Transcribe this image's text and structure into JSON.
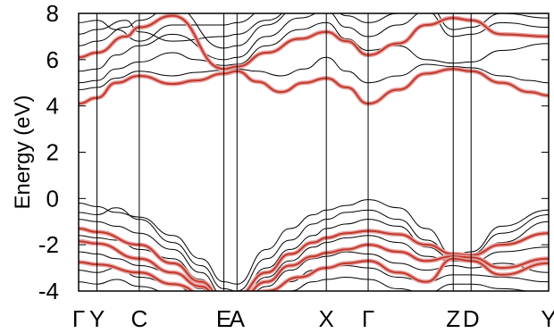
{
  "chart_data": {
    "type": "line",
    "title": "",
    "xlabel": "",
    "ylabel": "Energy (eV)",
    "ylim": [
      -4,
      8
    ],
    "y_ticks": [
      -4,
      -2,
      0,
      2,
      4,
      6,
      8
    ],
    "y_tick_labels": [
      "-4",
      "-2",
      "0",
      "2",
      "4",
      "6",
      "8"
    ],
    "k_path": [
      {
        "label": "Γ",
        "x": 0.0
      },
      {
        "label": "Y",
        "x": 0.039
      },
      {
        "label": "C",
        "x": 0.129
      },
      {
        "label": "E",
        "x": 0.309
      },
      {
        "label": "A",
        "x": 0.337
      },
      {
        "label": "X",
        "x": 0.527
      },
      {
        "label": "Γ",
        "x": 0.616
      },
      {
        "label": "Z",
        "x": 0.797
      },
      {
        "label": "D",
        "x": 0.835
      },
      {
        "label": "Y",
        "x": 1.0
      }
    ],
    "xlim": [
      0,
      1
    ],
    "grid": false,
    "legend": "none",
    "colors": {
      "bands": "#000000",
      "projection": "#c0392b",
      "projection_glow": "#e8a3a3"
    },
    "series": [
      {
        "name": "",
        "role": "projected",
        "x": [
          0,
          0.039,
          0.08,
          0.129,
          0.2,
          0.25,
          0.309,
          0.337,
          0.38,
          0.43,
          0.48,
          0.527,
          0.57,
          0.616,
          0.68,
          0.74,
          0.797,
          0.835,
          0.9,
          0.96,
          1.0
        ],
        "y": [
          4.1,
          4.35,
          5.0,
          5.3,
          4.95,
          5.1,
          5.4,
          5.5,
          5.05,
          4.6,
          5.0,
          5.2,
          4.8,
          4.1,
          4.7,
          5.4,
          5.6,
          5.5,
          5.0,
          4.6,
          4.45
        ]
      },
      {
        "name": "",
        "role": "projected",
        "x": [
          0,
          0.039,
          0.1,
          0.129,
          0.2,
          0.309,
          0.337,
          0.4,
          0.47,
          0.527,
          0.57,
          0.616,
          0.68,
          0.74,
          0.797,
          0.835,
          0.9,
          1.0
        ],
        "y": [
          6.1,
          6.3,
          7.0,
          7.4,
          7.9,
          5.6,
          5.7,
          6.3,
          6.9,
          7.2,
          6.8,
          6.2,
          6.7,
          7.5,
          7.8,
          7.7,
          7.1,
          7.0
        ]
      },
      {
        "name": "",
        "role": "projected",
        "x": [
          0,
          0.039,
          0.129,
          0.2,
          0.26,
          0.309,
          0.337,
          0.4,
          0.45,
          0.5,
          0.527,
          0.57,
          0.616,
          0.68,
          0.74,
          0.797,
          0.835,
          0.9,
          1.0
        ],
        "y": [
          -1.3,
          -1.45,
          -2.0,
          -2.8,
          -3.6,
          -4.4,
          -4.2,
          -3.2,
          -2.4,
          -1.9,
          -1.7,
          -1.5,
          -1.4,
          -1.55,
          -2.0,
          -2.4,
          -2.45,
          -2.0,
          -1.5
        ]
      },
      {
        "name": "",
        "role": "projected",
        "x": [
          0,
          0.039,
          0.129,
          0.2,
          0.26,
          0.309,
          0.337,
          0.4,
          0.45,
          0.5,
          0.527,
          0.57,
          0.616,
          0.68,
          0.74,
          0.797,
          0.835,
          0.9,
          1.0
        ],
        "y": [
          -1.85,
          -1.95,
          -2.6,
          -3.2,
          -3.8,
          -4.6,
          -4.5,
          -3.6,
          -2.9,
          -2.5,
          -2.35,
          -2.2,
          -2.0,
          -2.3,
          -2.7,
          -2.5,
          -2.55,
          -3.0,
          -2.6
        ]
      },
      {
        "name": "",
        "role": "projected",
        "x": [
          0,
          0.039,
          0.129,
          0.2,
          0.309,
          0.337,
          0.4,
          0.47,
          0.527,
          0.57,
          0.616,
          0.68,
          0.74,
          0.797,
          0.835,
          0.9,
          1.0
        ],
        "y": [
          -2.75,
          -2.85,
          -3.2,
          -3.7,
          -4.8,
          -4.7,
          -4.0,
          -3.4,
          -3.0,
          -2.8,
          -2.7,
          -3.2,
          -3.6,
          -2.6,
          -2.7,
          -3.3,
          -2.8
        ]
      },
      {
        "name": "",
        "role": "band",
        "x": [
          0,
          0.039,
          0.08,
          0.129,
          0.2,
          0.25,
          0.309,
          0.337,
          0.38,
          0.43,
          0.48,
          0.527,
          0.57,
          0.616,
          0.68,
          0.74,
          0.797,
          0.835,
          0.9,
          0.96,
          1.0
        ],
        "y": [
          4.7,
          4.8,
          5.2,
          5.5,
          5.3,
          5.45,
          5.55,
          5.6,
          5.5,
          5.3,
          5.6,
          6.1,
          5.5,
          5.0,
          5.3,
          5.8,
          5.7,
          5.65,
          5.3,
          5.1,
          5.0
        ]
      },
      {
        "name": "",
        "role": "band",
        "x": [
          0,
          0.039,
          0.08,
          0.129,
          0.2,
          0.25,
          0.309,
          0.337,
          0.4,
          0.47,
          0.527,
          0.57,
          0.616,
          0.68,
          0.74,
          0.797,
          0.835,
          0.9,
          1.0
        ],
        "y": [
          5.0,
          5.1,
          5.6,
          5.9,
          6.3,
          6.0,
          5.75,
          5.8,
          6.6,
          7.3,
          7.6,
          6.9,
          6.4,
          6.6,
          6.0,
          5.85,
          5.9,
          6.4,
          6.7
        ]
      },
      {
        "name": "",
        "role": "band",
        "x": [
          0,
          0.039,
          0.08,
          0.129,
          0.2,
          0.309,
          0.337,
          0.4,
          0.47,
          0.527,
          0.57,
          0.616,
          0.68,
          0.74,
          0.797,
          0.835,
          0.9,
          1.0
        ],
        "y": [
          5.5,
          5.6,
          6.2,
          6.6,
          7.1,
          6.0,
          6.1,
          7.0,
          7.8,
          8.1,
          7.4,
          7.0,
          7.5,
          8.1,
          7.0,
          7.1,
          7.6,
          7.4
        ]
      },
      {
        "name": "",
        "role": "band",
        "x": [
          0,
          0.039,
          0.1,
          0.129,
          0.2,
          0.309,
          0.337,
          0.4,
          0.47,
          0.527,
          0.57,
          0.616,
          0.68,
          0.74,
          0.797,
          0.835,
          0.9,
          1.0
        ],
        "y": [
          6.6,
          6.8,
          7.4,
          7.7,
          8.3,
          6.5,
          6.6,
          7.5,
          8.3,
          8.5,
          7.9,
          7.6,
          8.0,
          8.4,
          7.3,
          7.4,
          8.0,
          7.8
        ]
      },
      {
        "name": "",
        "role": "band",
        "x": [
          0,
          0.039,
          0.1,
          0.129,
          0.2,
          0.309,
          0.337,
          0.4,
          0.47,
          0.527,
          0.57,
          0.616,
          0.68,
          0.74,
          0.797,
          0.835,
          0.9,
          1.0
        ],
        "y": [
          7.1,
          7.3,
          7.7,
          7.2,
          6.8,
          7.0,
          7.1,
          7.7,
          8.4,
          8.6,
          8.3,
          8.0,
          8.4,
          8.6,
          8.1,
          8.1,
          8.4,
          8.2
        ]
      },
      {
        "name": "",
        "role": "band",
        "x": [
          0,
          0.039,
          0.08,
          0.129,
          0.2,
          0.309,
          0.337,
          0.4,
          0.47,
          0.527,
          0.57,
          0.616,
          0.68,
          0.74,
          0.797,
          0.835,
          0.9,
          1.0
        ],
        "y": [
          7.6,
          7.7,
          7.3,
          6.8,
          7.5,
          7.5,
          7.6,
          8.2,
          8.5,
          8.7,
          8.6,
          8.4,
          8.6,
          8.7,
          8.5,
          8.5,
          8.7,
          8.6
        ]
      },
      {
        "name": "",
        "role": "band",
        "x": [
          0,
          0.039,
          0.08,
          0.129,
          0.2,
          0.26,
          0.309,
          0.337,
          0.4,
          0.45,
          0.5,
          0.527,
          0.57,
          0.616,
          0.68,
          0.74,
          0.797,
          0.835,
          0.9,
          1.0
        ],
        "y": [
          -0.2,
          -0.35,
          -0.6,
          -0.8,
          -1.6,
          -2.6,
          -3.6,
          -3.7,
          -2.2,
          -1.3,
          -0.7,
          -0.5,
          -0.3,
          -0.05,
          -0.4,
          -1.3,
          -2.45,
          -2.3,
          -1.2,
          -0.5
        ]
      },
      {
        "name": "",
        "role": "band",
        "x": [
          0,
          0.039,
          0.08,
          0.129,
          0.2,
          0.26,
          0.309,
          0.337,
          0.4,
          0.45,
          0.5,
          0.527,
          0.57,
          0.616,
          0.68,
          0.74,
          0.797,
          0.835,
          0.9,
          1.0
        ],
        "y": [
          -0.6,
          -0.7,
          -0.4,
          -0.9,
          -1.9,
          -2.9,
          -3.9,
          -4.0,
          -2.6,
          -1.8,
          -1.1,
          -0.9,
          -0.6,
          -0.5,
          -0.9,
          -1.8,
          -2.5,
          -2.4,
          -1.5,
          -0.7
        ]
      },
      {
        "name": "",
        "role": "band",
        "x": [
          0,
          0.039,
          0.08,
          0.129,
          0.2,
          0.26,
          0.309,
          0.337,
          0.4,
          0.45,
          0.5,
          0.527,
          0.57,
          0.616,
          0.68,
          0.74,
          0.797,
          0.835,
          0.9,
          1.0
        ],
        "y": [
          -0.9,
          -1.0,
          -1.2,
          -1.5,
          -2.2,
          -3.2,
          -4.2,
          -4.3,
          -3.0,
          -2.2,
          -1.6,
          -1.3,
          -1.1,
          -0.9,
          -1.2,
          -2.1,
          -2.6,
          -2.55,
          -1.9,
          -1.0
        ]
      },
      {
        "name": "",
        "role": "band",
        "x": [
          0,
          0.039,
          0.08,
          0.129,
          0.2,
          0.26,
          0.309,
          0.337,
          0.4,
          0.45,
          0.5,
          0.527,
          0.57,
          0.616,
          0.68,
          0.74,
          0.797,
          0.835,
          0.9,
          1.0
        ],
        "y": [
          -1.6,
          -1.7,
          -1.8,
          -2.2,
          -2.6,
          -3.5,
          -4.5,
          -4.6,
          -3.4,
          -2.7,
          -2.1,
          -1.9,
          -1.7,
          -1.6,
          -1.9,
          -2.5,
          -2.7,
          -2.75,
          -2.3,
          -2.1
        ]
      },
      {
        "name": "",
        "role": "band",
        "x": [
          0,
          0.039,
          0.08,
          0.129,
          0.2,
          0.26,
          0.309,
          0.337,
          0.4,
          0.45,
          0.5,
          0.527,
          0.57,
          0.616,
          0.68,
          0.74,
          0.797,
          0.835,
          0.9,
          1.0
        ],
        "y": [
          -2.3,
          -2.4,
          -2.6,
          -2.9,
          -3.2,
          -3.9,
          -4.8,
          -4.9,
          -3.8,
          -3.1,
          -2.6,
          -2.5,
          -2.3,
          -2.4,
          -2.8,
          -3.1,
          -2.9,
          -3.0,
          -2.8,
          -3.2
        ]
      },
      {
        "name": "",
        "role": "band",
        "x": [
          0,
          0.039,
          0.08,
          0.129,
          0.2,
          0.26,
          0.309,
          0.337,
          0.4,
          0.45,
          0.5,
          0.527,
          0.57,
          0.616,
          0.68,
          0.74,
          0.797,
          0.835,
          0.9,
          1.0
        ],
        "y": [
          -3.1,
          -3.2,
          -3.0,
          -3.4,
          -3.7,
          -4.3,
          -5.0,
          -5.0,
          -4.2,
          -3.6,
          -3.1,
          -3.0,
          -2.9,
          -3.0,
          -3.4,
          -3.6,
          -3.3,
          -3.3,
          -3.4,
          -3.6
        ]
      },
      {
        "name": "",
        "role": "band",
        "x": [
          0,
          0.039,
          0.08,
          0.129,
          0.2,
          0.26,
          0.309,
          0.337,
          0.4,
          0.45,
          0.5,
          0.527,
          0.57,
          0.616,
          0.68,
          0.74,
          0.797,
          0.835,
          0.9,
          1.0
        ],
        "y": [
          -3.6,
          -3.7,
          -3.5,
          -3.8,
          -4.1,
          -4.6,
          -5.2,
          -5.2,
          -4.6,
          -4.0,
          -3.6,
          -3.5,
          -3.4,
          -3.5,
          -3.9,
          -4.1,
          -3.7,
          -3.7,
          -3.9,
          -4.1
        ]
      }
    ]
  }
}
